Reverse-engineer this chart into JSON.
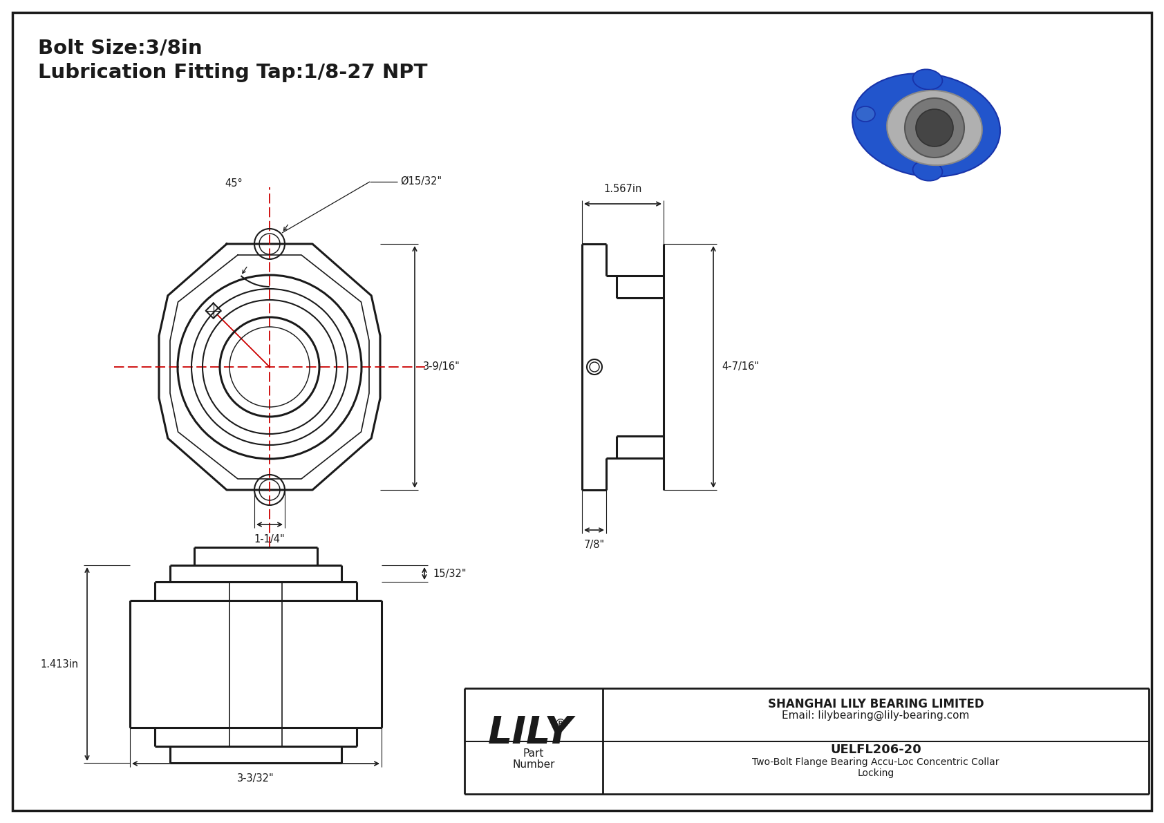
{
  "bg_color": "#ececec",
  "line_color": "#1a1a1a",
  "red_color": "#cc0000",
  "title_line1": "Bolt Size:3/8in",
  "title_line2": "Lubrication Fitting Tap:1/8-27 NPT",
  "dim_47_16": "4-7/16\"",
  "dim_1567": "1.567in",
  "dim_78": "7/8\"",
  "dim_15_32_top": "Ø15/32\"",
  "dim_45": "45°",
  "dim_3_9_16": "3-9/16\"",
  "dim_1_1_4": "1-1/4\"",
  "dim_1413": "1.413in",
  "dim_3_3_32": "3-3/32\"",
  "dim_15_32_bot": "15/32\"",
  "part_number": "UELFL206-20",
  "description": "Two-Bolt Flange Bearing Accu-Loc Concentric Collar",
  "description2": "Locking",
  "company": "SHANGHAI LILY BEARING LIMITED",
  "email": "Email: lilybearing@lily-bearing.com",
  "lily_text": "LILY",
  "lily_reg": "®"
}
